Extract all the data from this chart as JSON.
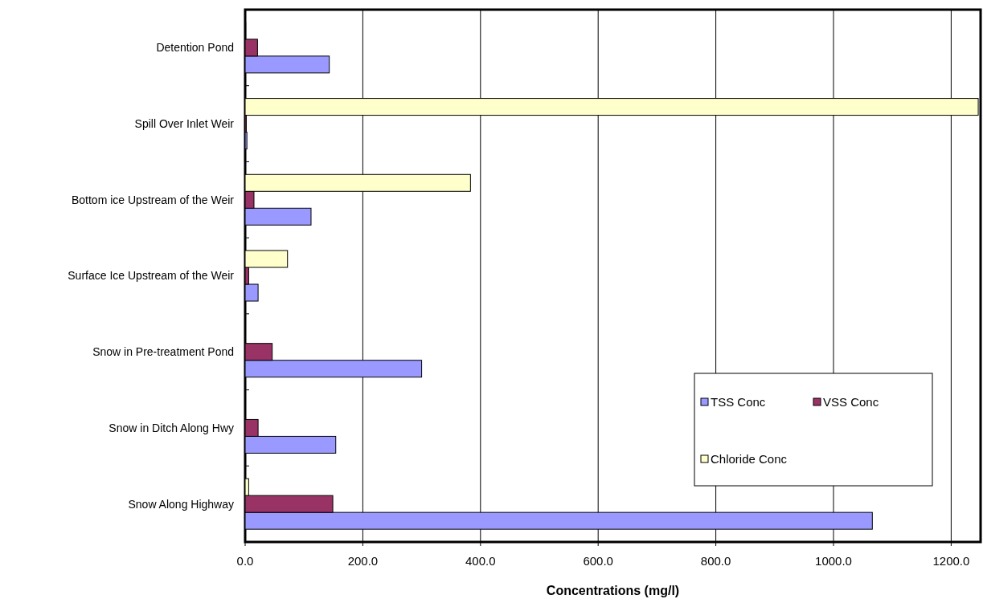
{
  "chart_data": {
    "type": "bar",
    "orientation": "horizontal",
    "xlabel": "Concentrations (mg/l)",
    "categories": [
      "Detention Pond",
      "Spill Over Inlet Weir",
      "Bottom ice Upstream of the Weir",
      "Surface Ice Upstream of the Weir",
      "Snow in Pre-treatment Pond",
      "Snow in Ditch Along Hwy",
      "Snow Along Highway"
    ],
    "series": [
      {
        "name": "TSS Conc",
        "color": "#9999ff",
        "values": [
          143,
          3,
          112,
          22,
          300,
          154,
          1066
        ]
      },
      {
        "name": "VSS Conc",
        "color": "#993366",
        "values": [
          21,
          2,
          15,
          6,
          46,
          22,
          149
        ]
      },
      {
        "name": "Chloride Conc",
        "color": "#ffffcc",
        "values": [
          1,
          1246,
          383,
          72,
          null,
          null,
          6
        ]
      }
    ],
    "xlim": [
      0,
      1250
    ],
    "xticks": [
      {
        "value": 0,
        "label": "0.0"
      },
      {
        "value": 200,
        "label": "200.0"
      },
      {
        "value": 400,
        "label": "400.0"
      },
      {
        "value": 600,
        "label": "600.0"
      },
      {
        "value": 800,
        "label": "800.0"
      },
      {
        "value": 1000,
        "label": "1000.0"
      },
      {
        "value": 1200,
        "label": "1200.0"
      }
    ],
    "grid": "x",
    "legend": "bottom right"
  }
}
